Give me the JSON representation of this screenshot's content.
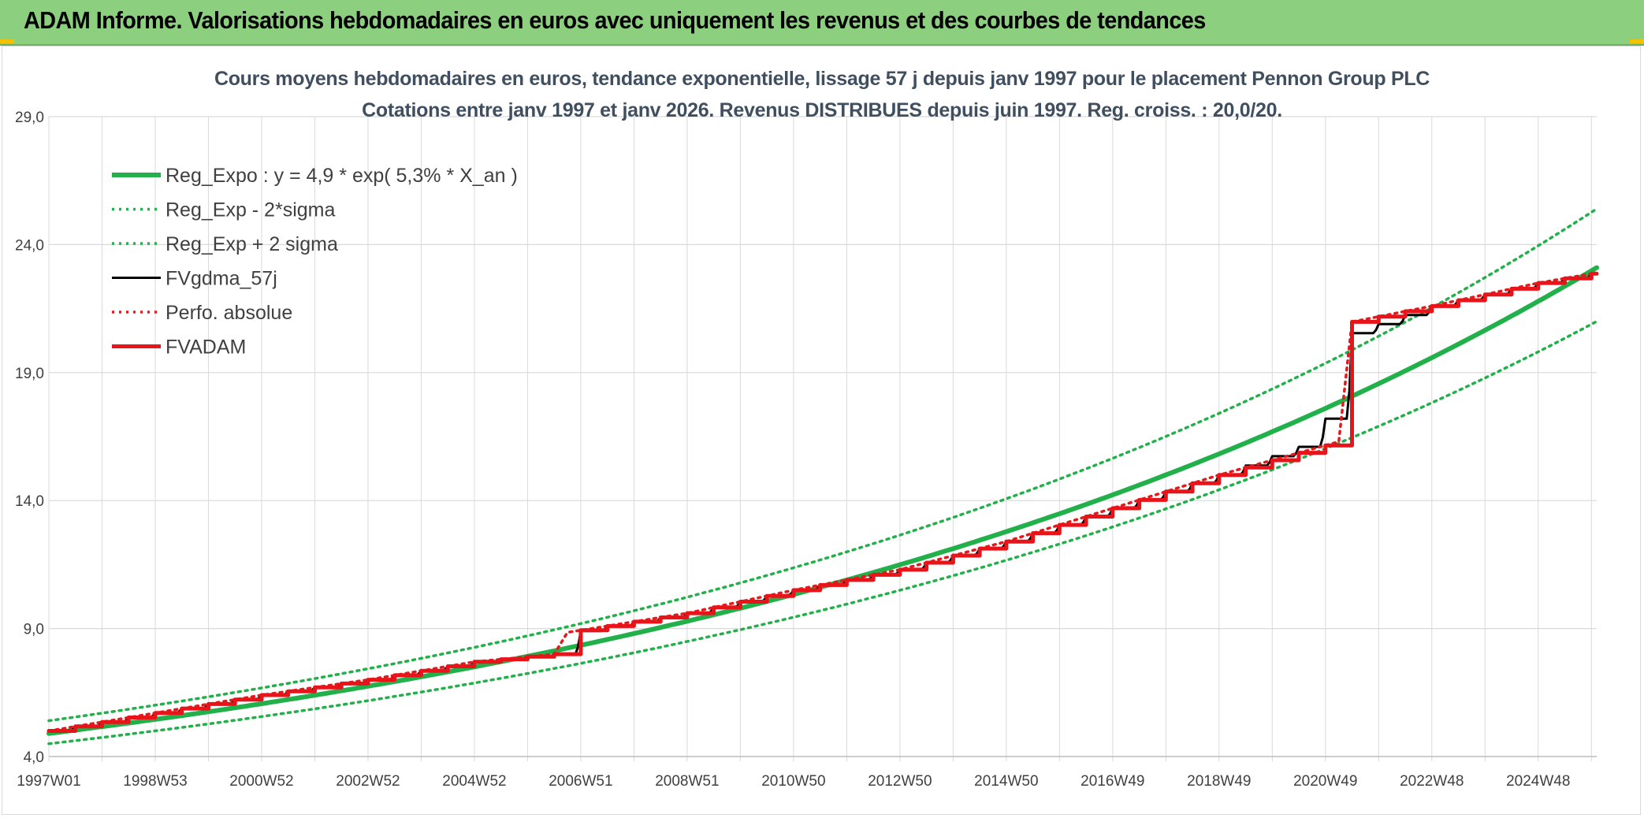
{
  "header": {
    "title": "ADAM Informe. Valorisations hebdomadaires en euros avec uniquement les revenus et des courbes de tendances"
  },
  "chart_data": {
    "type": "line",
    "title_line1": "Cours moyens hebdomadaires en euros, tendance exponentielle, lissage 57 j depuis janv 1997 pour le placement Pennon Group PLC",
    "title_line2": "Cotations entre janv 1997 et janv 2026. Revenus DISTRIBUES depuis juin 1997. Reg. croiss. : 20,0/20.",
    "y_ticks": [
      "4,0",
      "9,0",
      "14,0",
      "19,0",
      "24,0",
      "29,0"
    ],
    "y_tick_values": [
      4,
      9,
      14,
      19,
      24,
      29
    ],
    "ylim": [
      4,
      29
    ],
    "x_ticks": [
      "1997W01",
      "1998W53",
      "2000W52",
      "2002W52",
      "2004W52",
      "2006W51",
      "2008W51",
      "2010W50",
      "2012W50",
      "2014W50",
      "2016W49",
      "2018W49",
      "2020W49",
      "2022W48",
      "2024W48"
    ],
    "x_tick_years": [
      1997.0,
      1999.0,
      2001.0,
      2003.0,
      2005.0,
      2007.0,
      2009.0,
      2011.0,
      2013.0,
      2015.0,
      2017.0,
      2019.0,
      2021.0,
      2023.0,
      2025.0
    ],
    "xlim": [
      1997.0,
      2026.1
    ],
    "grid": true,
    "legend_position": "top-left",
    "series": [
      {
        "name": "Reg_Expo : y = 4,9 * exp( 5,3% *  X_an )",
        "color": "#22b04b",
        "style": "solid-thick",
        "x": [
          1997.0,
          2000.0,
          2003.0,
          2006.0,
          2009.0,
          2012.0,
          2015.0,
          2018.0,
          2021.0,
          2024.0,
          2026.1
        ],
        "values": [
          4.9,
          5.7,
          6.7,
          7.9,
          9.3,
          10.9,
          12.7,
          15.0,
          17.6,
          20.6,
          23.1
        ]
      },
      {
        "name": "Reg_Exp - 2*sigma",
        "color": "#22b04b",
        "style": "dotted",
        "x": [
          1997.0,
          2000.0,
          2003.0,
          2006.0,
          2009.0,
          2012.0,
          2015.0,
          2018.0,
          2021.0,
          2024.0,
          2026.1
        ],
        "values": [
          4.5,
          5.2,
          6.1,
          7.1,
          8.4,
          9.8,
          11.5,
          13.5,
          15.8,
          18.6,
          21.0
        ]
      },
      {
        "name": "Reg_Exp + 2 sigma",
        "color": "#22b04b",
        "style": "dotted",
        "x": [
          1997.0,
          2000.0,
          2003.0,
          2006.0,
          2009.0,
          2012.0,
          2015.0,
          2018.0,
          2021.0,
          2024.0,
          2026.1
        ],
        "values": [
          5.4,
          6.3,
          7.4,
          8.7,
          10.2,
          12.0,
          14.1,
          16.5,
          19.4,
          22.7,
          25.4
        ]
      },
      {
        "name": "FVgdma_57j",
        "color": "#000000",
        "style": "solid",
        "x": [
          1997.0,
          1999.0,
          2001.0,
          2003.0,
          2005.0,
          2006.5,
          2006.7,
          2009.0,
          2011.0,
          2013.0,
          2015.0,
          2017.0,
          2019.0,
          2020.5,
          2021.0,
          2021.3,
          2023.0,
          2025.0,
          2026.1
        ],
        "values": [
          5.0,
          5.7,
          6.4,
          7.0,
          7.7,
          8.0,
          8.8,
          9.6,
          10.5,
          11.3,
          12.4,
          13.7,
          15.0,
          16.1,
          17.2,
          20.4,
          21.6,
          22.5,
          22.9
        ]
      },
      {
        "name": "Perfo. absolue",
        "color": "#e41a1a",
        "style": "dotted",
        "x": [
          1997.0,
          2026.1
        ],
        "values": [
          5.0,
          22.9
        ]
      },
      {
        "name": "FVADAM",
        "color": "#e8141a",
        "style": "step-thick",
        "x": [
          1997.0,
          1999.0,
          2001.0,
          2003.0,
          2005.0,
          2006.5,
          2006.6,
          2009.0,
          2011.0,
          2013.0,
          2015.0,
          2017.0,
          2019.0,
          2021.25,
          2021.3,
          2023.0,
          2025.0,
          2026.1
        ],
        "values": [
          5.0,
          5.7,
          6.4,
          7.0,
          7.7,
          8.0,
          8.8,
          9.6,
          10.5,
          11.3,
          12.4,
          13.7,
          15.0,
          16.3,
          20.9,
          21.6,
          22.5,
          22.9
        ]
      }
    ]
  }
}
